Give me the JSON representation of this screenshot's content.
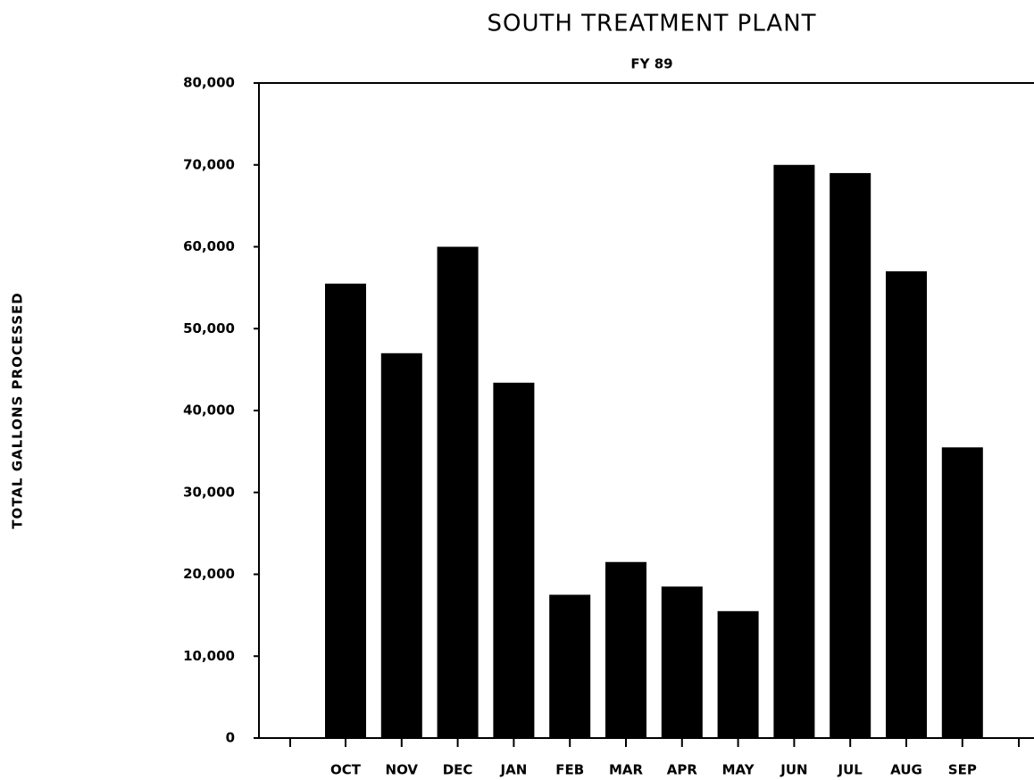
{
  "chart_data": {
    "type": "bar",
    "title": "SOUTH TREATMENT PLANT",
    "subtitle": "FY 89",
    "y_label": "TOTAL GALLONS PROCESSED",
    "categories": [
      "OCT",
      "NOV",
      "DEC",
      "JAN",
      "FEB",
      "MAR",
      "APR",
      "MAY",
      "JUN",
      "JUL",
      "AUG",
      "SEP"
    ],
    "values": [
      55500,
      47000,
      60000,
      43400,
      17500,
      21500,
      18500,
      15500,
      70000,
      69000,
      57000,
      35500
    ],
    "color": "#000000",
    "ylim": [
      0,
      80000
    ],
    "yticks": [
      0,
      {
        "value": 10000,
        "label": "10,000"
      },
      {
        "value": 20000,
        "label": "20,000"
      },
      {
        "value": 30000,
        "label": "30,000"
      },
      {
        "value": 40000,
        "label": "40,000"
      },
      {
        "value": 50000,
        "label": "50,000"
      },
      {
        "value": 60000,
        "label": "60,000"
      },
      {
        "value": 70000,
        "label": "70,000"
      },
      {
        "value": 80000,
        "label": "80,000"
      }
    ],
    "grid": false
  }
}
